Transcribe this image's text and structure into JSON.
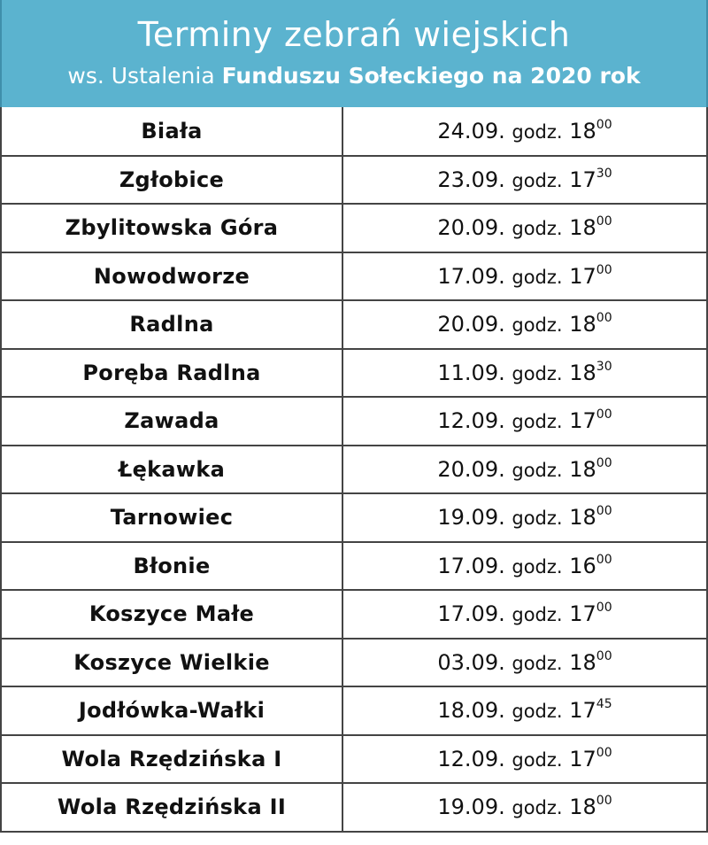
{
  "header": {
    "title": "Terminy zebrań wiejskich",
    "subtitle_prefix": "ws. Ustalenia ",
    "subtitle_bold": "Funduszu Sołeckiego na 2020 rok"
  },
  "rows": [
    {
      "village": "Biała",
      "date": "24.09.",
      "godz": "godz.",
      "hour": "18",
      "minutes": "00"
    },
    {
      "village": "Zgłobice",
      "date": "23.09.",
      "godz": "godz.",
      "hour": "17",
      "minutes": "30"
    },
    {
      "village": "Zbylitowska Góra",
      "date": "20.09.",
      "godz": "godz.",
      "hour": "18",
      "minutes": "00"
    },
    {
      "village": "Nowodworze",
      "date": "17.09.",
      "godz": "godz.",
      "hour": "17",
      "minutes": "00"
    },
    {
      "village": "Radlna",
      "date": "20.09.",
      "godz": "godz.",
      "hour": "18",
      "minutes": "00"
    },
    {
      "village": "Poręba Radlna",
      "date": "11.09.",
      "godz": "godz.",
      "hour": "18",
      "minutes": "30"
    },
    {
      "village": "Zawada",
      "date": "12.09.",
      "godz": "godz.",
      "hour": "17",
      "minutes": "00"
    },
    {
      "village": "Łękawka",
      "date": "20.09.",
      "godz": "godz.",
      "hour": "18",
      "minutes": "00"
    },
    {
      "village": "Tarnowiec",
      "date": "19.09.",
      "godz": "godz.",
      "hour": "18",
      "minutes": "00"
    },
    {
      "village": "Błonie",
      "date": "17.09.",
      "godz": "godz.",
      "hour": "16",
      "minutes": "00"
    },
    {
      "village": "Koszyce Małe",
      "date": "17.09.",
      "godz": "godz.",
      "hour": "17",
      "minutes": "00"
    },
    {
      "village": "Koszyce Wielkie",
      "date": "03.09.",
      "godz": "godz.",
      "hour": "18",
      "minutes": "00"
    },
    {
      "village": "Jodłówka-Wałki",
      "date": "18.09.",
      "godz": "godz.",
      "hour": "17",
      "minutes": "45"
    },
    {
      "village": "Wola Rzędzińska I",
      "date": "12.09.",
      "godz": "godz.",
      "hour": "17",
      "minutes": "00"
    },
    {
      "village": "Wola Rzędzińska II",
      "date": "19.09.",
      "godz": "godz.",
      "hour": "18",
      "minutes": "00"
    }
  ],
  "colors": {
    "header_background": "#5bb3cf",
    "header_text": "#ffffff",
    "grid_lines": "#444444"
  }
}
